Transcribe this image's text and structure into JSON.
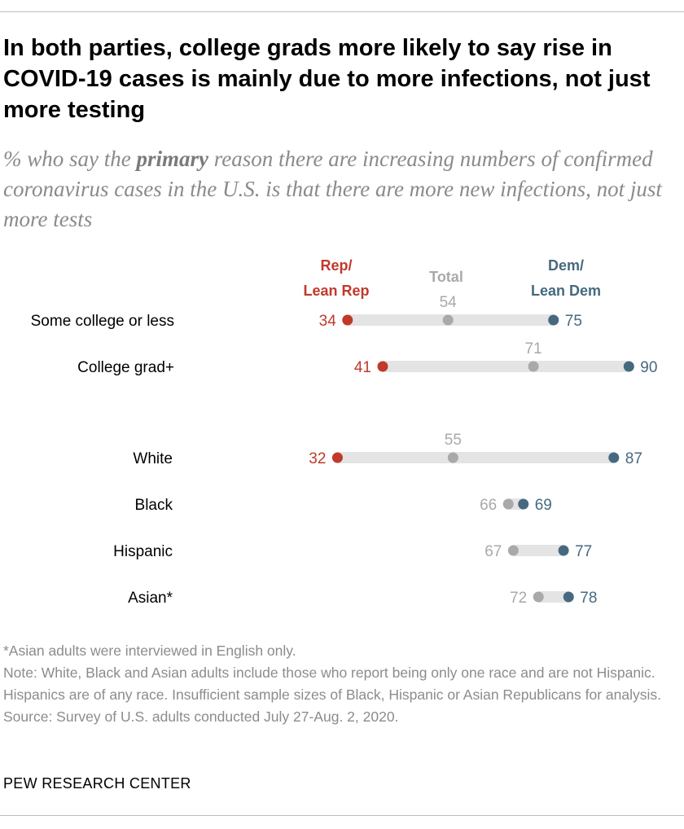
{
  "title": "In both parties, college grads more likely to say rise in COVID-19 cases is mainly due to more infections, not just more testing",
  "subtitle": {
    "pre": "% who say the ",
    "emphasis": "primary",
    "post": " reason there are increasing numbers of confirmed coronavirus cases in the U.S. is that there are more new infections, not just more tests"
  },
  "legend": {
    "rep_line1": "Rep/",
    "rep_line2": "Lean Rep",
    "total": "Total",
    "dem_line1": "Dem/",
    "dem_line2": "Lean Dem"
  },
  "colors": {
    "rep": "#c0392b",
    "total": "#a9a9a9",
    "dem": "#46697f",
    "bar": "#e4e4e4",
    "label": "#000000"
  },
  "chart_data": {
    "type": "dot",
    "xlim": [
      0,
      100
    ],
    "series": [
      "Rep/Lean Rep",
      "Total",
      "Dem/Lean Dem"
    ],
    "rows": [
      {
        "label": "Some college or less",
        "rep": 34,
        "total": 54,
        "dem": 75
      },
      {
        "label": "College grad+",
        "rep": 41,
        "total": 71,
        "dem": 90
      },
      {
        "label": "White",
        "rep": 32,
        "total": 55,
        "dem": 87
      },
      {
        "label": "Black",
        "rep": null,
        "total": 66,
        "dem": 69
      },
      {
        "label": "Hispanic",
        "rep": null,
        "total": 67,
        "dem": 77
      },
      {
        "label": "Asian*",
        "rep": null,
        "total": 72,
        "dem": 78
      }
    ]
  },
  "notes": {
    "asterisk": "*Asian adults were interviewed in English only.",
    "note": "Note: White, Black and Asian adults include those who report being only one race and are not Hispanic. Hispanics are of any race. Insufficient sample sizes of Black, Hispanic or Asian Republicans for analysis.",
    "source": "Source: Survey of U.S. adults conducted July 27-Aug. 2, 2020."
  },
  "org": "PEW RESEARCH CENTER"
}
